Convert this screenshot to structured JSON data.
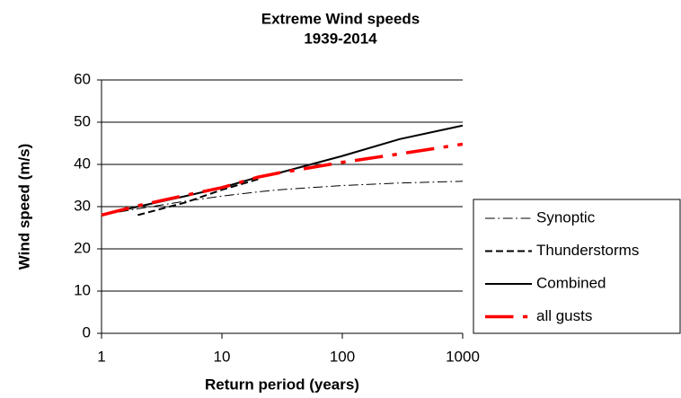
{
  "chart_data": {
    "type": "line",
    "title": "Extreme Wind speeds",
    "subtitle": "1939-2014",
    "x_label": "Return period (years)",
    "y_label": "Wind speed (m/s)",
    "x": [
      1,
      2,
      5,
      10,
      20,
      30,
      100,
      300,
      1000
    ],
    "xlim": [
      1,
      1000
    ],
    "xticks": [
      1,
      10,
      100,
      1000
    ],
    "xscale": "log",
    "ylim": [
      0,
      60
    ],
    "yticks": [
      0,
      10,
      20,
      30,
      40,
      50,
      60
    ],
    "grid": true,
    "legend": "right",
    "series": [
      {
        "name": "Synoptic",
        "color": "#000000",
        "style": "dash-dot",
        "width": 1,
        "values": [
          28,
          29.5,
          31.3,
          32.5,
          33.5,
          34,
          35,
          35.6,
          36
        ]
      },
      {
        "name": "Thunderstorms",
        "color": "#000000",
        "style": "dashed",
        "width": 2,
        "values": [
          null,
          28,
          31,
          34,
          36.5,
          null,
          null,
          null,
          null
        ]
      },
      {
        "name": "Combined",
        "color": "#000000",
        "style": "solid",
        "width": 2,
        "values": [
          28,
          30,
          32.5,
          34.5,
          37,
          38,
          42,
          46,
          49.2
        ]
      },
      {
        "name": "all gusts",
        "color": "#ff0000",
        "style": "dash-dot",
        "width": 3.5,
        "values": [
          28,
          30.2,
          32.7,
          34.5,
          37,
          38,
          40.5,
          42.5,
          44.8
        ]
      }
    ]
  }
}
